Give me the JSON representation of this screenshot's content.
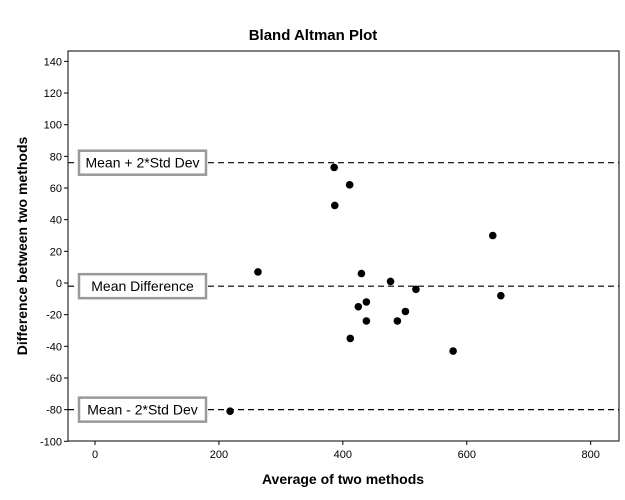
{
  "chart_data": {
    "type": "scatter",
    "title": "Bland Altman Plot",
    "xlabel": "Average of two methods",
    "ylabel": "Difference between two methods",
    "xlim": [
      -30,
      840
    ],
    "ylim": [
      -100,
      145
    ],
    "xticks": [
      0,
      200,
      400,
      600,
      800
    ],
    "yticks": [
      -100,
      -80,
      -60,
      -40,
      -20,
      0,
      20,
      40,
      60,
      80,
      100,
      120,
      140
    ],
    "grid": false,
    "reference_lines": [
      {
        "label": "Mean + 2*Std Dev",
        "y": 76
      },
      {
        "label": "Mean Difference",
        "y": -2
      },
      {
        "label": "Mean - 2*Std Dev",
        "y": -80
      }
    ],
    "points": [
      {
        "x": 218,
        "y": -81
      },
      {
        "x": 263,
        "y": 7
      },
      {
        "x": 386,
        "y": 73
      },
      {
        "x": 387,
        "y": 49
      },
      {
        "x": 411,
        "y": 62
      },
      {
        "x": 412,
        "y": -35
      },
      {
        "x": 425,
        "y": -15
      },
      {
        "x": 430,
        "y": 6
      },
      {
        "x": 438,
        "y": -12
      },
      {
        "x": 438,
        "y": -24
      },
      {
        "x": 477,
        "y": 1
      },
      {
        "x": 488,
        "y": -24
      },
      {
        "x": 501,
        "y": -18
      },
      {
        "x": 518,
        "y": -4
      },
      {
        "x": 578,
        "y": -43
      },
      {
        "x": 642,
        "y": 30
      },
      {
        "x": 655,
        "y": -8
      }
    ]
  }
}
